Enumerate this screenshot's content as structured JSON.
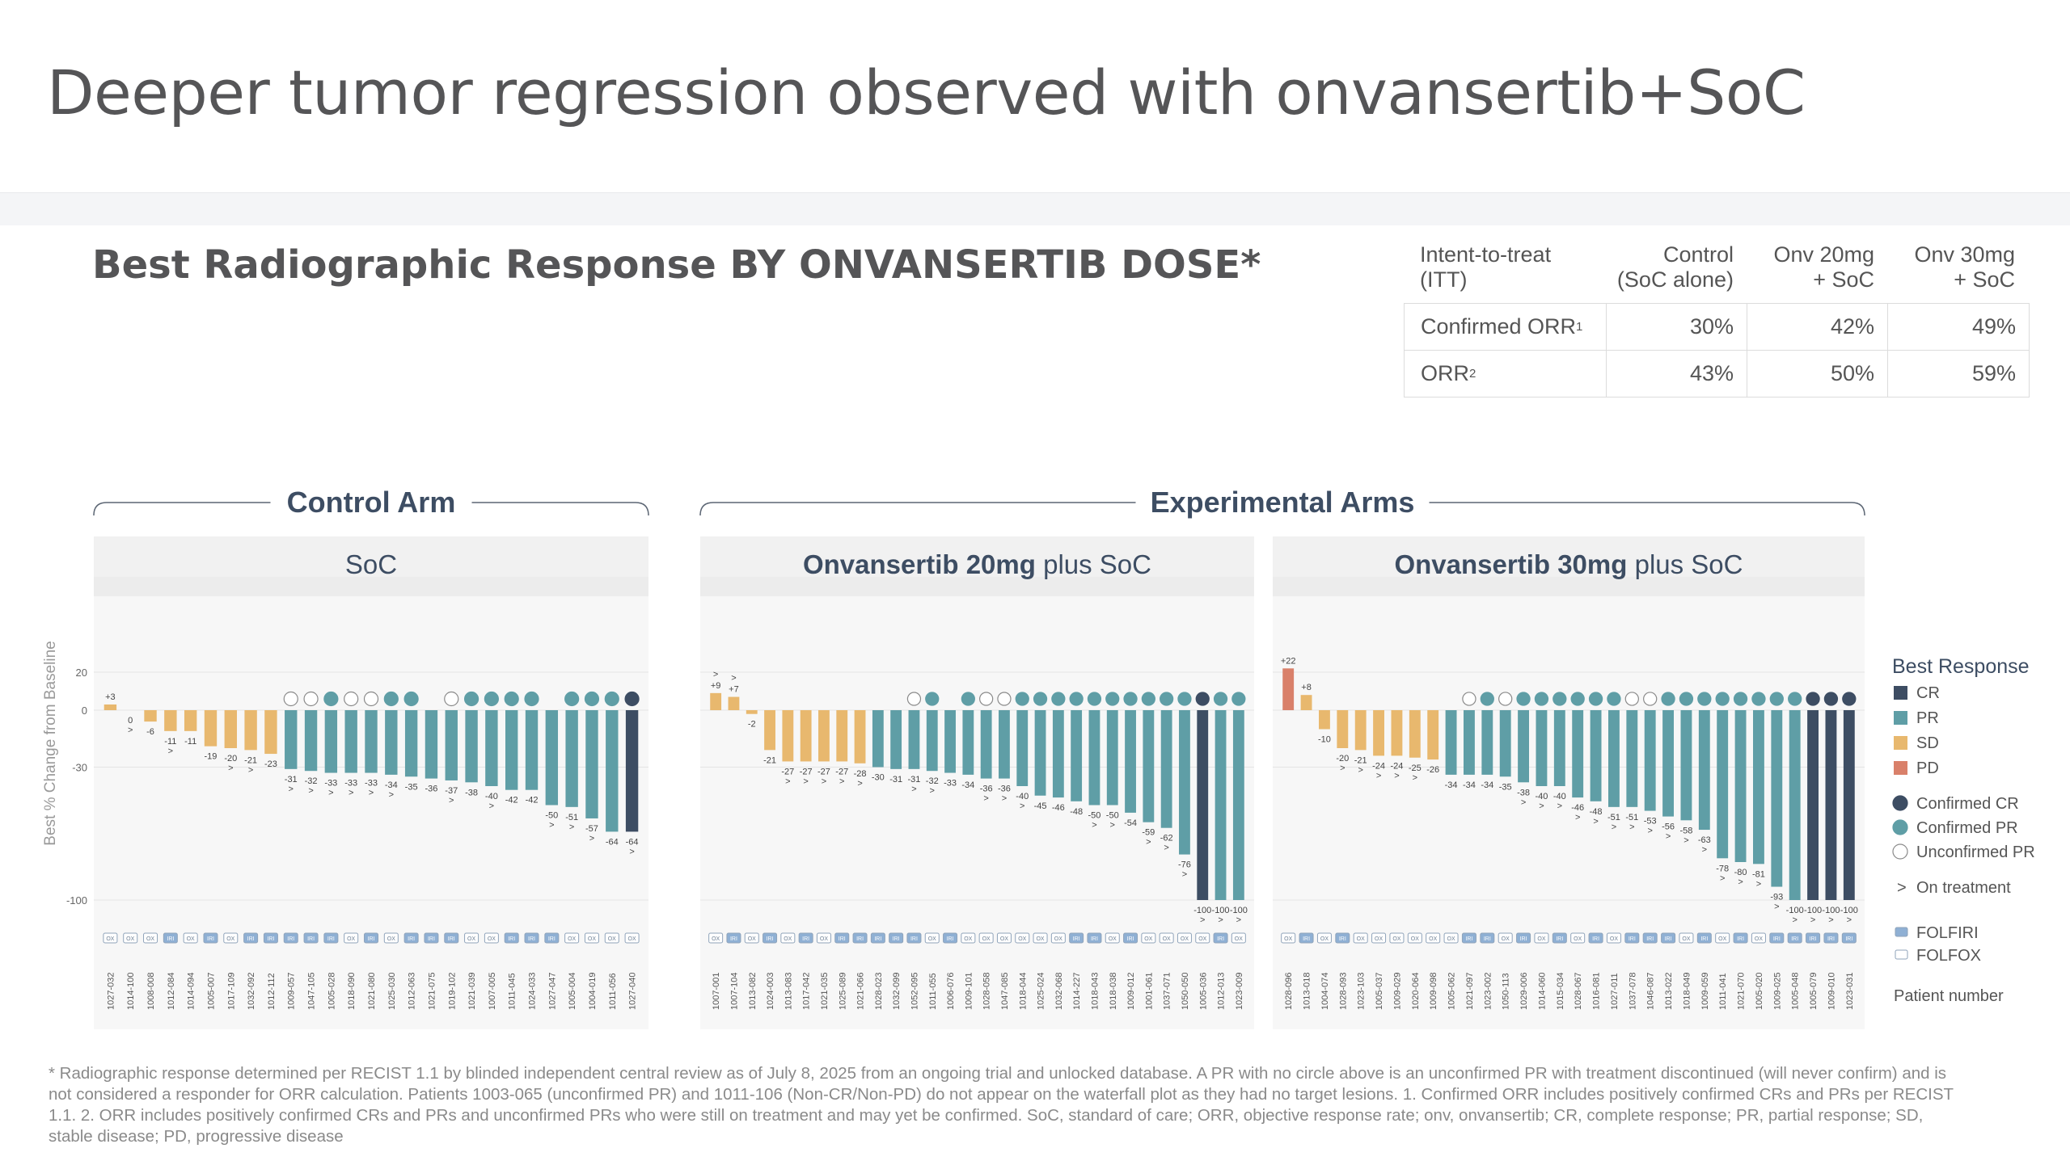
{
  "page": {
    "title": "Deeper tumor regression observed with onvansertib+SoC",
    "subtitle": "Best Radiographic Response BY ONVANSERTIB DOSE*",
    "footnote": "* Radiographic response determined per RECIST 1.1 by blinded independent central review as of July 8, 2025 from an ongoing trial and unlocked database. A PR with no circle above is an unconfirmed PR with treatment discontinued (will never confirm) and is not considered a responder for ORR calculation. Patients 1003-065 (unconfirmed PR) and 1011-106 (Non-CR/Non-PD) do not appear on the waterfall plot as they had no target lesions. 1. Confirmed ORR includes positively confirmed CRs and PRs per RECIST 1.1. 2. ORR includes positively confirmed CRs and PRs and unconfirmed PRs who were still on treatment and may yet be confirmed. SoC, standard of care; ORR, objective response rate; onv, onvansertib; CR, complete response; PR, partial response; SD, stable disease; PD, progressive disease"
  },
  "orr_table": {
    "headers": [
      "Intent-to-treat (ITT)",
      "Control (SoC alone)",
      "Onv 20mg + SoC",
      "Onv 30mg + SoC"
    ],
    "header_lines": [
      [
        "Intent-to-treat",
        "(ITT)"
      ],
      [
        "Control",
        "(SoC alone)"
      ],
      [
        "Onv 20mg",
        "+ SoC"
      ],
      [
        "Onv 30mg",
        "+ SoC"
      ]
    ],
    "rows": [
      {
        "label": "Confirmed ORR",
        "sup": "1",
        "values": [
          "30%",
          "42%",
          "49%"
        ]
      },
      {
        "label": "ORR",
        "sup": "2",
        "values": [
          "43%",
          "50%",
          "59%"
        ]
      }
    ]
  },
  "colors": {
    "CR": "#3d4d63",
    "PR": "#5f9ea6",
    "SD": "#e8b86e",
    "PD": "#d9806a",
    "panel_bg": "#f7f7f7",
    "panel_header": "#ececec",
    "heading": "#3d4d63"
  },
  "chart_data": {
    "type": "bar",
    "chart_kind": "waterfall",
    "ylabel": "Best % Change from Baseline",
    "yticks": [
      20,
      0,
      -30,
      -100
    ],
    "ylim": [
      -108,
      40
    ],
    "groups": [
      {
        "label": "Control Arm",
        "panels": [
          0
        ]
      },
      {
        "label": "Experimental Arms",
        "panels": [
          1,
          2
        ]
      }
    ],
    "panels": [
      {
        "title_bold": "",
        "title_rest": "SoC",
        "patients": [
          "1027-032",
          "1014-100",
          "1008-008",
          "1012-084",
          "1014-094",
          "1005-007",
          "1017-109",
          "1032-092",
          "1012-112",
          "1009-057",
          "1047-105",
          "1005-028",
          "1018-090",
          "1021-080",
          "1025-030",
          "1012-063",
          "1021-075",
          "1019-102",
          "1021-039",
          "1007-005",
          "1011-045",
          "1024-033",
          "1027-047",
          "1005-004",
          "1004-019",
          "1011-056",
          "1027-040"
        ],
        "values": [
          3,
          0,
          -6,
          -11,
          -11,
          -19,
          -20,
          -21,
          -23,
          -31,
          -32,
          -33,
          -33,
          -33,
          -34,
          -35,
          -36,
          -37,
          -38,
          -40,
          -42,
          -42,
          -50,
          -51,
          -57,
          -64,
          -64
        ],
        "labels": [
          "+3",
          "0",
          "-6",
          "-11",
          "-11",
          "-19",
          "-20",
          "-21",
          "-23",
          "-31",
          "-32",
          "-33",
          "-33",
          "-33",
          "-34",
          "-35",
          "-36",
          "-37",
          "-38",
          "-40",
          "-42",
          "-42",
          "-50",
          "-51",
          "-57",
          "-64",
          "-64"
        ],
        "response": [
          "SD",
          "SD",
          "SD",
          "SD",
          "SD",
          "SD",
          "SD",
          "SD",
          "SD",
          "PR",
          "PR",
          "PR",
          "PR",
          "PR",
          "PR",
          "PR",
          "PR",
          "PR",
          "PR",
          "PR",
          "PR",
          "PR",
          "PR",
          "PR",
          "PR",
          "PR",
          "CR"
        ],
        "circle": [
          "",
          "",
          "",
          "",
          "",
          "",
          "",
          "",
          "",
          "U",
          "U",
          "C",
          "U",
          "U",
          "C",
          "C",
          "",
          "U",
          "C",
          "C",
          "C",
          "C",
          "",
          "C",
          "C",
          "C",
          "C"
        ],
        "on_treatment": [
          false,
          true,
          false,
          true,
          false,
          false,
          true,
          true,
          false,
          true,
          true,
          true,
          true,
          true,
          true,
          false,
          false,
          true,
          false,
          true,
          false,
          false,
          true,
          true,
          true,
          false,
          true
        ],
        "regimen": [
          "OX",
          "OX",
          "OX",
          "IRI",
          "OX",
          "IRI",
          "OX",
          "IRI",
          "IRI",
          "IRI",
          "IRI",
          "IRI",
          "OX",
          "IRI",
          "OX",
          "IRI",
          "IRI",
          "IRI",
          "OX",
          "OX",
          "IRI",
          "IRI",
          "IRI",
          "OX",
          "OX",
          "OX",
          "OX"
        ]
      },
      {
        "title_bold": "Onvansertib 20mg",
        "title_rest": " plus SoC",
        "patients": [
          "1007-001",
          "1007-104",
          "1013-082",
          "1024-003",
          "1013-083",
          "1017-042",
          "1021-035",
          "1025-089",
          "1021-066",
          "1028-023",
          "1032-099",
          "1052-095",
          "1011-055",
          "1006-076",
          "1009-101",
          "1028-058",
          "1047-085",
          "1018-044",
          "1025-024",
          "1032-068",
          "1014-227",
          "1018-043",
          "1018-038",
          "1009-012",
          "1001-061",
          "1037-071",
          "1050-050",
          "1005-036",
          "1012-013",
          "1023-009"
        ],
        "values": [
          9,
          7,
          -2,
          -21,
          -27,
          -27,
          -27,
          -27,
          -28,
          -30,
          -31,
          -31,
          -32,
          -33,
          -34,
          -36,
          -36,
          -40,
          -45,
          -46,
          -48,
          -50,
          -50,
          -54,
          -59,
          -62,
          -76,
          -100,
          -100,
          -100
        ],
        "labels": [
          "+9",
          "+7",
          "-2",
          "-21",
          "-27",
          "-27",
          "-27",
          "-27",
          "-28",
          "-30",
          "-31",
          "-31",
          "-32",
          "-33",
          "-34",
          "-36",
          "-36",
          "-40",
          "-45",
          "-46",
          "-48",
          "-50",
          "-50",
          "-54",
          "-59",
          "-62",
          "-76",
          "-100",
          "-100",
          "-100"
        ],
        "response": [
          "SD",
          "SD",
          "SD",
          "SD",
          "SD",
          "SD",
          "SD",
          "SD",
          "SD",
          "PR",
          "PR",
          "PR",
          "PR",
          "PR",
          "PR",
          "PR",
          "PR",
          "PR",
          "PR",
          "PR",
          "PR",
          "PR",
          "PR",
          "PR",
          "PR",
          "PR",
          "PR",
          "CR",
          "PR",
          "PR"
        ],
        "circle": [
          "",
          "",
          "",
          "",
          "",
          "",
          "",
          "",
          "",
          "",
          "",
          "U",
          "C",
          "",
          "C",
          "U",
          "U",
          "C",
          "C",
          "C",
          "C",
          "C",
          "C",
          "C",
          "C",
          "C",
          "C",
          "C",
          "C",
          "C"
        ],
        "on_treatment": [
          true,
          true,
          false,
          false,
          true,
          true,
          true,
          true,
          true,
          false,
          false,
          true,
          true,
          false,
          false,
          true,
          true,
          true,
          false,
          false,
          false,
          true,
          true,
          false,
          true,
          true,
          true,
          true,
          true,
          true
        ],
        "regimen": [
          "OX",
          "IRI",
          "OX",
          "IRI",
          "OX",
          "IRI",
          "OX",
          "IRI",
          "IRI",
          "IRI",
          "IRI",
          "IRI",
          "OX",
          "IRI",
          "OX",
          "OX",
          "OX",
          "OX",
          "OX",
          "OX",
          "IRI",
          "IRI",
          "OX",
          "IRI",
          "OX",
          "OX",
          "OX",
          "OX",
          "IRI",
          "OX"
        ]
      },
      {
        "title_bold": "Onvansertib 30mg",
        "title_rest": " plus SoC",
        "patients": [
          "1028-096",
          "1013-018",
          "1004-074",
          "1028-093",
          "1023-103",
          "1005-037",
          "1009-029",
          "1020-064",
          "1009-098",
          "1005-062",
          "1021-097",
          "1023-002",
          "1050-113",
          "1029-006",
          "1014-060",
          "1015-034",
          "1028-067",
          "1016-081",
          "1027-011",
          "1037-078",
          "1046-087",
          "1013-022",
          "1018-049",
          "1009-059",
          "1011-041",
          "1021-070",
          "1005-020",
          "1009-025",
          "1005-048",
          "1005-079",
          "1009-010",
          "1023-031"
        ],
        "values": [
          22,
          8,
          -10,
          -20,
          -21,
          -24,
          -24,
          -25,
          -26,
          -34,
          -34,
          -34,
          -35,
          -38,
          -40,
          -40,
          -46,
          -48,
          -51,
          -51,
          -53,
          -56,
          -58,
          -63,
          -78,
          -80,
          -81,
          -93,
          -100,
          -100,
          -100,
          -100
        ],
        "labels": [
          "+22",
          "+8",
          "-10",
          "-20",
          "-21",
          "-24",
          "-24",
          "-25",
          "-26",
          "-34",
          "-34",
          "-34",
          "-35",
          "-38",
          "-40",
          "-40",
          "-46",
          "-48",
          "-51",
          "-51",
          "-53",
          "-56",
          "-58",
          "-63",
          "-78",
          "-80",
          "-81",
          "-93",
          "-100",
          "-100",
          "-100",
          "-100"
        ],
        "response": [
          "PD",
          "SD",
          "SD",
          "SD",
          "SD",
          "SD",
          "SD",
          "SD",
          "SD",
          "PR",
          "PR",
          "PR",
          "PR",
          "PR",
          "PR",
          "PR",
          "PR",
          "PR",
          "PR",
          "PR",
          "PR",
          "PR",
          "PR",
          "PR",
          "PR",
          "PR",
          "PR",
          "PR",
          "PR",
          "CR",
          "CR",
          "CR"
        ],
        "circle": [
          "",
          "",
          "",
          "",
          "",
          "",
          "",
          "",
          "",
          "",
          "U",
          "C",
          "U",
          "C",
          "C",
          "C",
          "C",
          "C",
          "C",
          "U",
          "U",
          "C",
          "C",
          "C",
          "C",
          "C",
          "C",
          "C",
          "C",
          "C",
          "C",
          "C"
        ],
        "on_treatment": [
          false,
          false,
          false,
          true,
          true,
          true,
          true,
          true,
          false,
          false,
          false,
          false,
          false,
          true,
          true,
          true,
          true,
          true,
          true,
          true,
          true,
          true,
          true,
          true,
          true,
          true,
          true,
          true,
          true,
          true,
          true,
          true
        ],
        "regimen": [
          "OX",
          "IRI",
          "OX",
          "IRI",
          "OX",
          "OX",
          "OX",
          "OX",
          "OX",
          "OX",
          "IRI",
          "IRI",
          "OX",
          "IRI",
          "OX",
          "IRI",
          "OX",
          "IRI",
          "OX",
          "IRI",
          "IRI",
          "IRI",
          "OX",
          "IRI",
          "OX",
          "IRI",
          "OX",
          "IRI",
          "IRI",
          "IRI",
          "IRI",
          "IRI"
        ]
      }
    ],
    "legend": {
      "title": "Best Response",
      "bars": [
        {
          "key": "CR",
          "label": "CR"
        },
        {
          "key": "PR",
          "label": "PR"
        },
        {
          "key": "SD",
          "label": "SD"
        },
        {
          "key": "PD",
          "label": "PD"
        }
      ],
      "circles": [
        {
          "key": "C-CR",
          "label": "Confirmed CR"
        },
        {
          "key": "C",
          "label": "Confirmed PR"
        },
        {
          "key": "U",
          "label": "Unconfirmed PR"
        }
      ],
      "on_treatment": "On treatment",
      "regimens": [
        {
          "key": "IRI",
          "label": "FOLFIRI"
        },
        {
          "key": "OX",
          "label": "FOLFOX"
        }
      ],
      "patient_number": "Patient number",
      "on_treatment_marker": ">"
    }
  }
}
